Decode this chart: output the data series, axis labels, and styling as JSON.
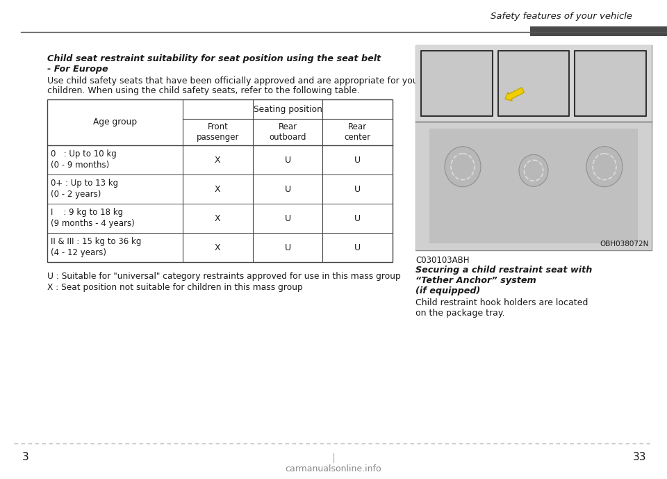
{
  "page_title": "Safety features of your vehicle",
  "page_number_left": "3",
  "page_number_right": "33",
  "header_line_color": "#555555",
  "header_bar_color": "#4a4a4a",
  "bold_italic_title_line1": "Child seat restraint suitability for seat position using the seat belt",
  "bold_italic_title_line2": "- For Europe",
  "intro_text_line1": "Use child safety seats that have been officially approved and are appropriate for your",
  "intro_text_line2": "children. When using the child safety seats, refer to the following table.",
  "table_header_col0": "Age group",
  "table_seating_label": "Seating position",
  "table_col1": "Front\npassenger",
  "table_col2": "Rear\noutboard",
  "table_col3": "Rear\ncenter",
  "table_rows": [
    {
      "age": "0   : Up to 10 kg\n(0 - 9 months)",
      "front": "X",
      "rear_out": "U",
      "rear_cen": "U"
    },
    {
      "age": "0+ : Up to 13 kg\n(0 - 2 years)",
      "front": "X",
      "rear_out": "U",
      "rear_cen": "U"
    },
    {
      "age": "I    : 9 kg to 18 kg\n(9 months - 4 years)",
      "front": "X",
      "rear_out": "U",
      "rear_cen": "U"
    },
    {
      "age": "II & III : 15 kg to 36 kg\n(4 - 12 years)",
      "front": "X",
      "rear_out": "U",
      "rear_cen": "U"
    }
  ],
  "footnote1": "U : Suitable for \"universal\" category restraints approved for use in this mass group",
  "footnote2": "X : Seat position not suitable for children in this mass group",
  "image_code": "C030103ABH",
  "image_label_line1": "Securing a child restraint seat with",
  "image_label_line2": "“Tether Anchor” system",
  "image_label_line3": "(if equipped)",
  "image_caption_line1": "Child restraint hook holders are located",
  "image_caption_line2": "on the package tray.",
  "obh_code": "OBH038072N",
  "bottom_dash_color": "#999999",
  "text_color": "#1a1a1a",
  "table_border_color": "#444444",
  "background_color": "#ffffff",
  "watermark": "carmanualsonline.info"
}
